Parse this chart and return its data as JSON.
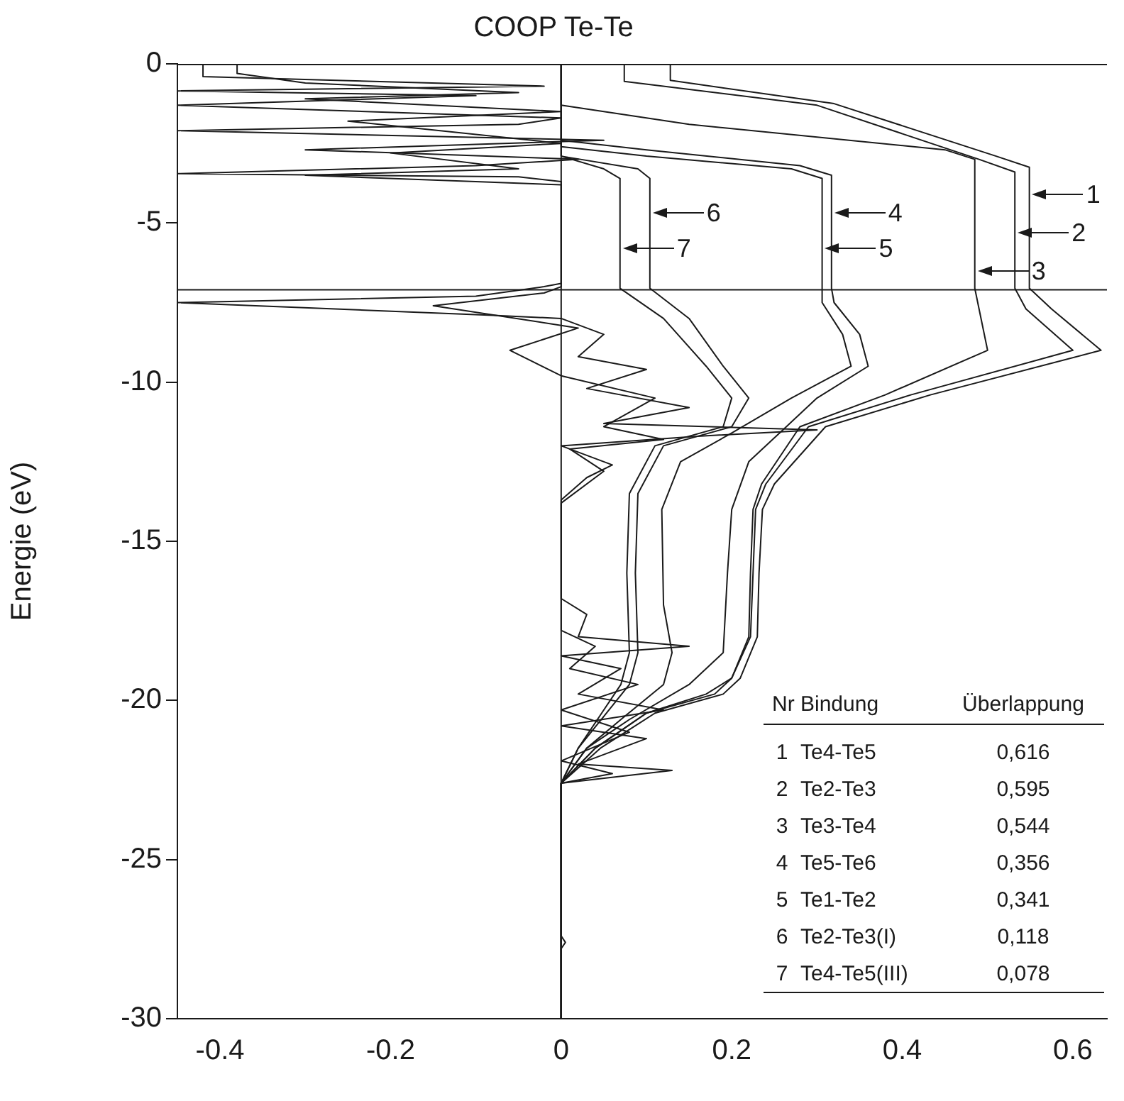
{
  "chart_data": {
    "type": "line",
    "title": "COOP Te-Te",
    "ylabel": "Energie (eV)",
    "xlim": [
      -0.45,
      0.64
    ],
    "xticks": [
      {
        "value": -0.4,
        "label": "-0.4"
      },
      {
        "value": -0.2,
        "label": "-0.2"
      },
      0,
      {
        "value": 0.2,
        "label": "0.2"
      },
      {
        "value": 0.4,
        "label": "0.4"
      },
      {
        "value": 0.6,
        "label": "0.6"
      }
    ],
    "ylim": [
      -30,
      0
    ],
    "yticks": [
      -30,
      -25,
      -20,
      -15,
      -10,
      -5,
      0
    ],
    "grid": false,
    "legend": false,
    "ref_lines": [
      {
        "axis": "y",
        "value": -7.1,
        "color": "#1a1a1a"
      },
      {
        "axis": "x",
        "value": 0,
        "color": "#1a1a1a"
      }
    ],
    "series": [
      {
        "color": "#1a1a1a",
        "x": [
          0,
          0,
          0.005,
          0,
          0,
          0.13,
          0.02,
          0.1,
          0,
          0.12,
          0.02,
          0.07,
          0,
          0.15,
          0.02,
          0.03,
          0,
          0,
          0.03,
          0.06,
          0,
          0.16,
          0.3,
          0.05,
          0.15,
          0.03,
          0.1,
          0.02,
          0.05,
          0,
          -0.08,
          -0.45,
          -0.1,
          -0.02,
          0,
          0,
          -0.05,
          -0.45,
          -0.1,
          0.02,
          -0.3,
          0.05,
          -0.45,
          -0.05,
          0,
          -0.45,
          -0.1,
          -0.45,
          -0.02,
          -0.42,
          -0.42
        ],
        "values": [
          -30,
          -27.8,
          -27.6,
          -27.4,
          -22.6,
          -22.2,
          -22,
          -21.2,
          -20.8,
          -20.3,
          -19.8,
          -19,
          -18.6,
          -18.3,
          -18,
          -17.3,
          -16.8,
          -13.7,
          -13,
          -12.6,
          -12,
          -11.7,
          -11.5,
          -11.3,
          -10.8,
          -10.2,
          -9.6,
          -9.2,
          -8.5,
          -8,
          -7.9,
          -7.5,
          -7.3,
          -7,
          -6.9,
          -3.7,
          -3.55,
          -3.45,
          -3.2,
          -3,
          -2.7,
          -2.4,
          -2.1,
          -1.9,
          -1.7,
          -1.3,
          -1,
          -0.85,
          -0.7,
          -0.4,
          0
        ]
      },
      {
        "color": "#1a1a1a",
        "x": [
          0,
          0,
          0.06,
          0,
          0.08,
          0,
          0.09,
          0.01,
          0.04,
          0,
          0,
          0.05,
          0.01,
          0.12,
          0.05,
          0.11,
          0,
          -0.06,
          0.02,
          -0.15,
          -0.02,
          0,
          0,
          -0.3,
          -0.05,
          -0.2,
          0,
          -0.25,
          0,
          -0.3,
          -0.05,
          -0.3,
          -0.38,
          -0.38
        ],
        "values": [
          -30,
          -22.6,
          -22.3,
          -21.9,
          -21,
          -20.3,
          -19.5,
          -19,
          -18.3,
          -17.8,
          -13.8,
          -12.8,
          -12.1,
          -11.8,
          -11.4,
          -10.5,
          -9.8,
          -9,
          -8.3,
          -7.6,
          -7.2,
          -7,
          -3.8,
          -3.5,
          -3.3,
          -2.8,
          -2.5,
          -1.8,
          -1.5,
          -1.1,
          -0.9,
          -0.6,
          -0.3,
          0
        ]
      },
      {
        "color": "#1a1a1a",
        "x": [
          0,
          0,
          0.046,
          0.11,
          0.19,
          0.21,
          0.23,
          0.232,
          0.236,
          0.25,
          0.31,
          0.433,
          0.633,
          0.575,
          0.549,
          0.549,
          0.51,
          0.32,
          0.128,
          0.128
        ],
        "values": [
          -30,
          -22.6,
          -21.5,
          -20.4,
          -19.8,
          -19.3,
          -18,
          -16,
          -14,
          -13.2,
          -11.4,
          -10.4,
          -9,
          -7.7,
          -7.05,
          -3.25,
          -2.9,
          -1.25,
          -0.52,
          0
        ]
      },
      {
        "color": "#1a1a1a",
        "x": [
          0,
          0,
          0.04,
          0.1,
          0.18,
          0.2,
          0.222,
          0.225,
          0.228,
          0.24,
          0.29,
          0.41,
          0.6,
          0.545,
          0.532,
          0.532,
          0.49,
          0.3,
          0.074,
          0.074
        ],
        "values": [
          -30,
          -22.6,
          -21.5,
          -20.4,
          -19.8,
          -19.3,
          -18,
          -16,
          -14,
          -13.2,
          -11.4,
          -10.4,
          -9,
          -7.7,
          -7.05,
          -3.4,
          -3,
          -1.3,
          -0.55,
          0
        ]
      },
      {
        "color": "#1a1a1a",
        "x": [
          0,
          0,
          0.04,
          0.1,
          0.17,
          0.2,
          0.22,
          0.222,
          0.225,
          0.235,
          0.28,
          0.38,
          0.5,
          0.49,
          0.485,
          0.485,
          0.45,
          0.15,
          0,
          0
        ],
        "values": [
          -30,
          -22.6,
          -21.5,
          -20.4,
          -19.8,
          -19.3,
          -18,
          -16,
          -14,
          -13.2,
          -11.4,
          -10.4,
          -9,
          -7.7,
          -7.05,
          -3,
          -2.7,
          -1.9,
          -1.3,
          0
        ]
      },
      {
        "color": "#1a1a1a",
        "x": [
          0,
          0,
          0.03,
          0.08,
          0.15,
          0.19,
          0.195,
          0.2,
          0.22,
          0.26,
          0.3,
          0.36,
          0.35,
          0.32,
          0.317,
          0.317,
          0.28,
          0.1,
          0,
          0
        ],
        "values": [
          -30,
          -22.6,
          -21.5,
          -20.6,
          -19.5,
          -18.5,
          -16,
          -14,
          -12.5,
          -11.5,
          -10.5,
          -9.5,
          -8.5,
          -7.5,
          -7.05,
          -3.5,
          -3.2,
          -2.7,
          -2.4,
          0
        ]
      },
      {
        "color": "#1a1a1a",
        "x": [
          0,
          0,
          0.03,
          0.07,
          0.12,
          0.13,
          0.12,
          0.118,
          0.14,
          0.2,
          0.27,
          0.34,
          0.33,
          0.306,
          0.306,
          0.27,
          0.1,
          0,
          0
        ],
        "values": [
          -30,
          -22.6,
          -21.5,
          -20.6,
          -19.5,
          -18.5,
          -17,
          -14,
          -12.5,
          -11.6,
          -10.5,
          -9.5,
          -8.5,
          -7.5,
          -3.6,
          -3.3,
          -2.9,
          -2.6,
          0
        ]
      },
      {
        "color": "#1a1a1a",
        "x": [
          0,
          0,
          0.02,
          0.05,
          0.08,
          0.09,
          0.087,
          0.09,
          0.12,
          0.2,
          0.22,
          0.19,
          0.15,
          0.104,
          0.104,
          0.09,
          0,
          0
        ],
        "values": [
          -30,
          -22.6,
          -21.5,
          -20.5,
          -19.5,
          -18.5,
          -16,
          -13.5,
          -12,
          -11.4,
          -10.5,
          -9.5,
          -8,
          -7.05,
          -3.6,
          -3.3,
          -2.9,
          0
        ]
      },
      {
        "color": "#1a1a1a",
        "x": [
          0,
          0,
          0.02,
          0.045,
          0.07,
          0.08,
          0.077,
          0.08,
          0.11,
          0.19,
          0.2,
          0.17,
          0.12,
          0.069,
          0.069,
          0.05,
          0,
          0
        ],
        "values": [
          -30,
          -22.6,
          -21.5,
          -20.5,
          -19.5,
          -18.5,
          -16,
          -13.5,
          -12,
          -11.4,
          -10.5,
          -9.5,
          -8,
          -7.05,
          -3.6,
          -3.3,
          -2.9,
          0
        ]
      }
    ],
    "annotations": [
      {
        "text": "1",
        "x": 0.549,
        "y": -4.1
      },
      {
        "text": "2",
        "x": 0.532,
        "y": -5.3
      },
      {
        "text": "3",
        "x": 0.485,
        "y": -6.5
      },
      {
        "text": "4",
        "x": 0.317,
        "y": -4.7
      },
      {
        "text": "5",
        "x": 0.306,
        "y": -5.8
      },
      {
        "text": "6",
        "x": 0.104,
        "y": -4.7
      },
      {
        "text": "7",
        "x": 0.069,
        "y": -5.8
      },
      "Nr Bindung Überlappung",
      "1 Te4-Te5 0,616",
      "2 Te2-Te3 0,595",
      "3 Te3-Te4 0,544",
      "4 Te5-Te6 0,356",
      "5 Te1-Te2 0,341",
      "6 Te2-Te3(I) 0,118",
      "7 Te4-Te5(III) 0,078"
    ]
  }
}
